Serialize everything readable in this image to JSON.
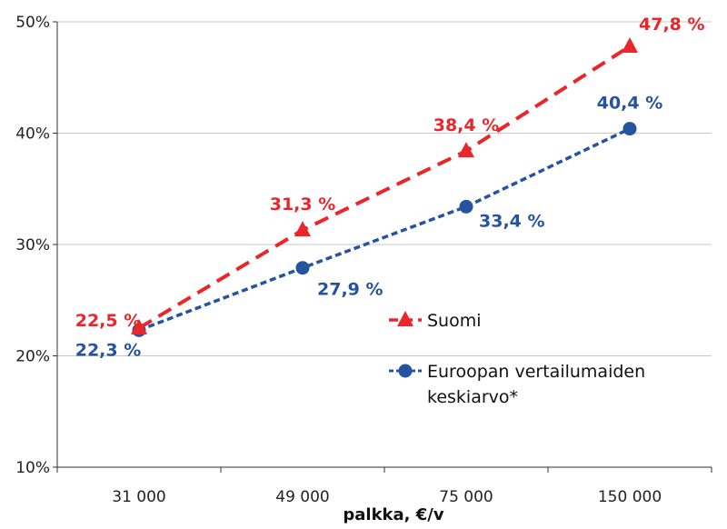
{
  "chart_data": {
    "type": "line",
    "categories": [
      "31 000",
      "49 000",
      "75 000",
      "150 000"
    ],
    "xlabel": "palkka, €/v",
    "ylim": [
      10,
      50
    ],
    "yticks": [
      "10%",
      "20%",
      "30%",
      "40%",
      "50%"
    ],
    "grid": true,
    "legend_position": "center-right",
    "series": [
      {
        "name": "Suomi",
        "values": [
          22.5,
          31.3,
          38.4,
          47.8
        ],
        "labels": [
          "22,5 %",
          "31,3 %",
          "38,4 %",
          "47,8 %"
        ],
        "color": "#e8262b",
        "marker": "triangle",
        "line": "dashed"
      },
      {
        "name": "Euroopan vertailumaiden keskiarvo*",
        "name_lines": [
          "Euroopan vertailumaiden",
          "keskiarvo*"
        ],
        "values": [
          22.3,
          27.9,
          33.4,
          40.4
        ],
        "labels": [
          "22,3 %",
          "27,9 %",
          "33,4 %",
          "40,4 %"
        ],
        "color": "#2553a0",
        "marker": "circle",
        "line": "dotted"
      }
    ]
  }
}
